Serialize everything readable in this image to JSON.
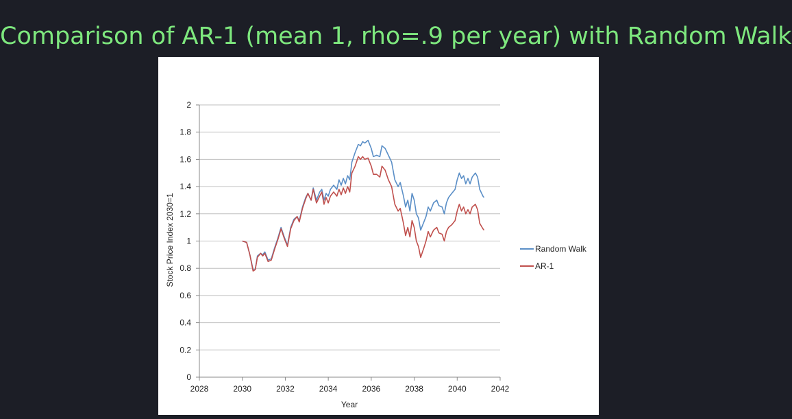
{
  "slide": {
    "title": "Comparison of AR-1 (mean 1, rho=.9 per year) with Random Walk",
    "title_color": "#7ee87e"
  },
  "chart_data": {
    "type": "line",
    "title": "",
    "xlabel": "Year",
    "ylabel": "Stock Price Index 2030=1",
    "xlim": [
      2028,
      2042
    ],
    "ylim": [
      0,
      2
    ],
    "xticks": [
      2028,
      2030,
      2032,
      2034,
      2036,
      2038,
      2040,
      2042
    ],
    "yticks": [
      0,
      0.2,
      0.4,
      0.6,
      0.8,
      1,
      1.2,
      1.4,
      1.6,
      1.8,
      2
    ],
    "ytick_labels": [
      "0",
      "0.2",
      "0.4",
      "0.6",
      "0.8",
      "1",
      "1.2",
      "1.4",
      "1.6",
      "1.8",
      "2"
    ],
    "grid": "horizontal",
    "legend_position": "right",
    "series": [
      {
        "name": "Random Walk",
        "color": "#5b8fc7",
        "points": [
          [
            2030.0,
            1.0
          ],
          [
            2030.2,
            0.99
          ],
          [
            2030.35,
            0.9
          ],
          [
            2030.5,
            0.79
          ],
          [
            2030.6,
            0.79
          ],
          [
            2030.7,
            0.89
          ],
          [
            2030.85,
            0.91
          ],
          [
            2030.95,
            0.9
          ],
          [
            2031.05,
            0.92
          ],
          [
            2031.2,
            0.86
          ],
          [
            2031.35,
            0.87
          ],
          [
            2031.5,
            0.95
          ],
          [
            2031.65,
            1.02
          ],
          [
            2031.8,
            1.1
          ],
          [
            2031.95,
            1.03
          ],
          [
            2032.1,
            0.97
          ],
          [
            2032.25,
            1.1
          ],
          [
            2032.4,
            1.16
          ],
          [
            2032.55,
            1.18
          ],
          [
            2032.65,
            1.15
          ],
          [
            2032.8,
            1.25
          ],
          [
            2032.95,
            1.32
          ],
          [
            2033.05,
            1.35
          ],
          [
            2033.2,
            1.3
          ],
          [
            2033.3,
            1.39
          ],
          [
            2033.45,
            1.3
          ],
          [
            2033.6,
            1.36
          ],
          [
            2033.7,
            1.38
          ],
          [
            2033.8,
            1.3
          ],
          [
            2033.9,
            1.35
          ],
          [
            2034.0,
            1.33
          ],
          [
            2034.1,
            1.38
          ],
          [
            2034.25,
            1.41
          ],
          [
            2034.4,
            1.38
          ],
          [
            2034.5,
            1.45
          ],
          [
            2034.6,
            1.41
          ],
          [
            2034.7,
            1.46
          ],
          [
            2034.8,
            1.42
          ],
          [
            2034.9,
            1.48
          ],
          [
            2035.0,
            1.45
          ],
          [
            2035.1,
            1.58
          ],
          [
            2035.25,
            1.65
          ],
          [
            2035.4,
            1.71
          ],
          [
            2035.5,
            1.7
          ],
          [
            2035.6,
            1.73
          ],
          [
            2035.7,
            1.72
          ],
          [
            2035.85,
            1.74
          ],
          [
            2036.0,
            1.68
          ],
          [
            2036.1,
            1.62
          ],
          [
            2036.25,
            1.63
          ],
          [
            2036.4,
            1.62
          ],
          [
            2036.5,
            1.7
          ],
          [
            2036.65,
            1.68
          ],
          [
            2036.8,
            1.63
          ],
          [
            2036.95,
            1.58
          ],
          [
            2037.1,
            1.45
          ],
          [
            2037.25,
            1.4
          ],
          [
            2037.35,
            1.43
          ],
          [
            2037.5,
            1.33
          ],
          [
            2037.6,
            1.25
          ],
          [
            2037.7,
            1.3
          ],
          [
            2037.8,
            1.22
          ],
          [
            2037.9,
            1.35
          ],
          [
            2038.0,
            1.3
          ],
          [
            2038.1,
            1.2
          ],
          [
            2038.2,
            1.17
          ],
          [
            2038.3,
            1.08
          ],
          [
            2038.45,
            1.14
          ],
          [
            2038.55,
            1.18
          ],
          [
            2038.65,
            1.25
          ],
          [
            2038.75,
            1.22
          ],
          [
            2038.9,
            1.28
          ],
          [
            2039.05,
            1.3
          ],
          [
            2039.15,
            1.26
          ],
          [
            2039.3,
            1.25
          ],
          [
            2039.4,
            1.2
          ],
          [
            2039.5,
            1.28
          ],
          [
            2039.6,
            1.32
          ],
          [
            2039.75,
            1.35
          ],
          [
            2039.9,
            1.38
          ],
          [
            2040.0,
            1.45
          ],
          [
            2040.1,
            1.5
          ],
          [
            2040.2,
            1.46
          ],
          [
            2040.3,
            1.48
          ],
          [
            2040.4,
            1.42
          ],
          [
            2040.5,
            1.46
          ],
          [
            2040.6,
            1.42
          ],
          [
            2040.7,
            1.47
          ],
          [
            2040.85,
            1.5
          ],
          [
            2040.95,
            1.47
          ],
          [
            2041.05,
            1.38
          ],
          [
            2041.2,
            1.33
          ],
          [
            2041.25,
            1.32
          ]
        ]
      },
      {
        "name": "AR-1",
        "color": "#c0504d",
        "points": [
          [
            2030.0,
            1.0
          ],
          [
            2030.2,
            0.99
          ],
          [
            2030.35,
            0.9
          ],
          [
            2030.5,
            0.78
          ],
          [
            2030.6,
            0.79
          ],
          [
            2030.7,
            0.88
          ],
          [
            2030.85,
            0.91
          ],
          [
            2030.95,
            0.89
          ],
          [
            2031.05,
            0.91
          ],
          [
            2031.2,
            0.85
          ],
          [
            2031.35,
            0.86
          ],
          [
            2031.5,
            0.94
          ],
          [
            2031.65,
            1.01
          ],
          [
            2031.8,
            1.09
          ],
          [
            2031.95,
            1.02
          ],
          [
            2032.1,
            0.96
          ],
          [
            2032.25,
            1.09
          ],
          [
            2032.4,
            1.15
          ],
          [
            2032.55,
            1.18
          ],
          [
            2032.65,
            1.14
          ],
          [
            2032.8,
            1.24
          ],
          [
            2032.95,
            1.31
          ],
          [
            2033.05,
            1.35
          ],
          [
            2033.2,
            1.3
          ],
          [
            2033.3,
            1.38
          ],
          [
            2033.45,
            1.28
          ],
          [
            2033.6,
            1.33
          ],
          [
            2033.7,
            1.36
          ],
          [
            2033.8,
            1.27
          ],
          [
            2033.9,
            1.32
          ],
          [
            2034.0,
            1.28
          ],
          [
            2034.1,
            1.33
          ],
          [
            2034.25,
            1.36
          ],
          [
            2034.4,
            1.33
          ],
          [
            2034.5,
            1.38
          ],
          [
            2034.6,
            1.34
          ],
          [
            2034.7,
            1.39
          ],
          [
            2034.8,
            1.35
          ],
          [
            2034.9,
            1.4
          ],
          [
            2035.0,
            1.36
          ],
          [
            2035.1,
            1.5
          ],
          [
            2035.25,
            1.55
          ],
          [
            2035.4,
            1.62
          ],
          [
            2035.5,
            1.6
          ],
          [
            2035.6,
            1.62
          ],
          [
            2035.7,
            1.6
          ],
          [
            2035.85,
            1.61
          ],
          [
            2036.0,
            1.55
          ],
          [
            2036.1,
            1.49
          ],
          [
            2036.25,
            1.49
          ],
          [
            2036.4,
            1.47
          ],
          [
            2036.5,
            1.55
          ],
          [
            2036.65,
            1.52
          ],
          [
            2036.8,
            1.45
          ],
          [
            2036.95,
            1.4
          ],
          [
            2037.1,
            1.27
          ],
          [
            2037.25,
            1.22
          ],
          [
            2037.35,
            1.24
          ],
          [
            2037.5,
            1.13
          ],
          [
            2037.6,
            1.04
          ],
          [
            2037.7,
            1.1
          ],
          [
            2037.8,
            1.03
          ],
          [
            2037.9,
            1.15
          ],
          [
            2038.0,
            1.1
          ],
          [
            2038.1,
            1.0
          ],
          [
            2038.2,
            0.96
          ],
          [
            2038.3,
            0.88
          ],
          [
            2038.45,
            0.95
          ],
          [
            2038.55,
            1.0
          ],
          [
            2038.65,
            1.07
          ],
          [
            2038.75,
            1.03
          ],
          [
            2038.9,
            1.08
          ],
          [
            2039.05,
            1.1
          ],
          [
            2039.15,
            1.06
          ],
          [
            2039.3,
            1.05
          ],
          [
            2039.4,
            1.0
          ],
          [
            2039.5,
            1.07
          ],
          [
            2039.6,
            1.1
          ],
          [
            2039.75,
            1.12
          ],
          [
            2039.9,
            1.15
          ],
          [
            2040.0,
            1.22
          ],
          [
            2040.1,
            1.27
          ],
          [
            2040.2,
            1.22
          ],
          [
            2040.3,
            1.25
          ],
          [
            2040.4,
            1.2
          ],
          [
            2040.5,
            1.23
          ],
          [
            2040.6,
            1.2
          ],
          [
            2040.7,
            1.25
          ],
          [
            2040.85,
            1.27
          ],
          [
            2040.95,
            1.23
          ],
          [
            2041.05,
            1.13
          ],
          [
            2041.2,
            1.09
          ],
          [
            2041.25,
            1.08
          ]
        ]
      }
    ]
  }
}
